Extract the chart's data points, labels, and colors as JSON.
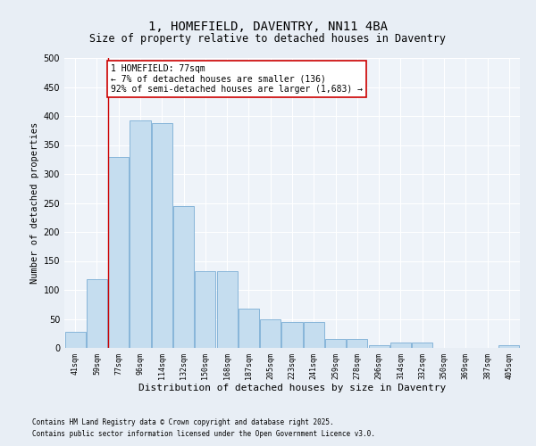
{
  "title": "1, HOMEFIELD, DAVENTRY, NN11 4BA",
  "subtitle": "Size of property relative to detached houses in Daventry",
  "xlabel": "Distribution of detached houses by size in Daventry",
  "ylabel": "Number of detached properties",
  "footer_line1": "Contains HM Land Registry data © Crown copyright and database right 2025.",
  "footer_line2": "Contains public sector information licensed under the Open Government Licence v3.0.",
  "categories": [
    "41sqm",
    "59sqm",
    "77sqm",
    "96sqm",
    "114sqm",
    "132sqm",
    "150sqm",
    "168sqm",
    "187sqm",
    "205sqm",
    "223sqm",
    "241sqm",
    "259sqm",
    "278sqm",
    "296sqm",
    "314sqm",
    "332sqm",
    "350sqm",
    "369sqm",
    "387sqm",
    "405sqm"
  ],
  "values": [
    27,
    119,
    330,
    393,
    388,
    244,
    133,
    133,
    68,
    50,
    45,
    45,
    15,
    15,
    5,
    10,
    10,
    0,
    0,
    0,
    5
  ],
  "bar_color": "#c5ddef",
  "bar_edge_color": "#7aadd4",
  "vline_color": "#cc0000",
  "annotation_text": "1 HOMEFIELD: 77sqm\n← 7% of detached houses are smaller (136)\n92% of semi-detached houses are larger (1,683) →",
  "annotation_box_color": "#ffffff",
  "annotation_border_color": "#cc0000",
  "ylim": [
    0,
    500
  ],
  "yticks": [
    0,
    50,
    100,
    150,
    200,
    250,
    300,
    350,
    400,
    450,
    500
  ],
  "bg_color": "#e8eef5",
  "plot_bg_color": "#eef3f9",
  "grid_color": "#ffffff",
  "title_fontsize": 10,
  "subtitle_fontsize": 8.5,
  "tick_fontsize": 6,
  "ylabel_fontsize": 7.5,
  "xlabel_fontsize": 8,
  "footer_fontsize": 5.5,
  "annotation_fontsize": 7
}
